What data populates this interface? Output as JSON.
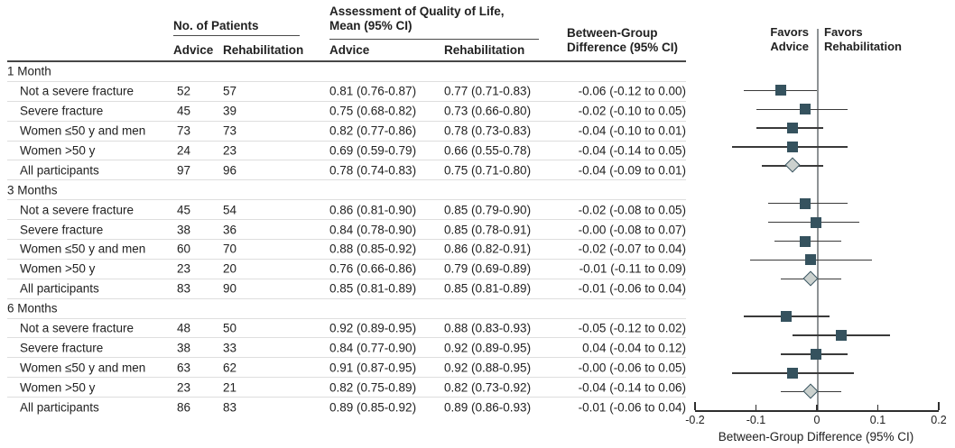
{
  "header": {
    "no_of_patients": "No. of Patients",
    "qol_line1": "Assessment of Quality of Life,",
    "qol_line2": "Mean (95% CI)",
    "advice": "Advice",
    "rehabilitation": "Rehabilitation",
    "bg_line1": "Between-Group",
    "bg_line2": "Difference (95% CI)"
  },
  "forest_header": {
    "favors_advice_line1": "Favors",
    "favors_advice_line2": "Advice",
    "favors_rehab_line1": "Favors",
    "favors_rehab_line2": "Rehabilitation"
  },
  "axis": {
    "ticks": [
      "-0.2",
      "-0.1",
      "0",
      "0.1",
      "0.2"
    ],
    "tick_values": [
      -0.2,
      -0.1,
      0,
      0.1,
      0.2
    ],
    "label": "Between-Group Difference (95% CI)",
    "min": -0.2,
    "max": 0.2
  },
  "colors": {
    "square": "#35525e",
    "diamond_fill": "#cbd1ce",
    "diamond_border": "#37535f",
    "zero_line": "#8e9294",
    "ci_line": "#3a3a3a"
  },
  "chart_data": {
    "type": "scatter",
    "subtype": "forest-plot",
    "xlabel": "Between-Group Difference (95% CI)",
    "xlim": [
      -0.2,
      0.2
    ],
    "legend": {
      "left_of_zero": "Favors Advice",
      "right_of_zero": "Favors Rehabilitation"
    },
    "groups": [
      {
        "label": "1 Month",
        "rows": [
          {
            "label": "Not a severe fracture",
            "n_advice": "52",
            "n_rehab": "57",
            "qol_advice": "0.81 (0.76-0.87)",
            "qol_rehab": "0.77 (0.71-0.83)",
            "diff_text": "-0.06 (-0.12 to 0.00)",
            "est": -0.06,
            "lo": -0.12,
            "hi": 0.0,
            "marker": "square"
          },
          {
            "label": "Severe fracture",
            "n_advice": "45",
            "n_rehab": "39",
            "qol_advice": "0.75 (0.68-0.82)",
            "qol_rehab": "0.73 (0.66-0.80)",
            "diff_text": "-0.02 (-0.10 to 0.05)",
            "est": -0.02,
            "lo": -0.1,
            "hi": 0.05,
            "marker": "square"
          },
          {
            "label": "Women ≤50 y and men",
            "n_advice": "73",
            "n_rehab": "73",
            "qol_advice": "0.82 (0.77-0.86)",
            "qol_rehab": "0.78 (0.73-0.83)",
            "diff_text": "-0.04 (-0.10 to 0.01)",
            "est": -0.04,
            "lo": -0.1,
            "hi": 0.01,
            "marker": "square"
          },
          {
            "label": "Women >50 y",
            "n_advice": "24",
            "n_rehab": "23",
            "qol_advice": "0.69 (0.59-0.79)",
            "qol_rehab": "0.66 (0.55-0.78)",
            "diff_text": "-0.04 (-0.14 to 0.05)",
            "est": -0.04,
            "lo": -0.14,
            "hi": 0.05,
            "marker": "square"
          },
          {
            "label": "All participants",
            "n_advice": "97",
            "n_rehab": "96",
            "qol_advice": "0.78 (0.74-0.83)",
            "qol_rehab": "0.75 (0.71-0.80)",
            "diff_text": "-0.04 (-0.09 to 0.01)",
            "est": -0.04,
            "lo": -0.09,
            "hi": 0.01,
            "marker": "diamond"
          }
        ]
      },
      {
        "label": "3 Months",
        "rows": [
          {
            "label": "Not a severe fracture",
            "n_advice": "45",
            "n_rehab": "54",
            "qol_advice": "0.86 (0.81-0.90)",
            "qol_rehab": "0.85 (0.79-0.90)",
            "diff_text": "-0.02 (-0.08 to 0.05)",
            "est": -0.02,
            "lo": -0.08,
            "hi": 0.05,
            "marker": "square"
          },
          {
            "label": "Severe fracture",
            "n_advice": "38",
            "n_rehab": "36",
            "qol_advice": "0.84 (0.78-0.90)",
            "qol_rehab": "0.85 (0.78-0.91)",
            "diff_text": "-0.00 (-0.08 to 0.07)",
            "est": -0.002,
            "lo": -0.08,
            "hi": 0.07,
            "marker": "square"
          },
          {
            "label": "Women ≤50 y and men",
            "n_advice": "60",
            "n_rehab": "70",
            "qol_advice": "0.88 (0.85-0.92)",
            "qol_rehab": "0.86 (0.82-0.91)",
            "diff_text": "-0.02 (-0.07 to 0.04)",
            "est": -0.02,
            "lo": -0.07,
            "hi": 0.04,
            "marker": "square"
          },
          {
            "label": "Women >50 y",
            "n_advice": "23",
            "n_rehab": "20",
            "qol_advice": "0.76 (0.66-0.86)",
            "qol_rehab": "0.79 (0.69-0.89)",
            "diff_text": "-0.01 (-0.11 to 0.09)",
            "est": -0.01,
            "lo": -0.11,
            "hi": 0.09,
            "marker": "square"
          },
          {
            "label": "All participants",
            "n_advice": "83",
            "n_rehab": "90",
            "qol_advice": "0.85 (0.81-0.89)",
            "qol_rehab": "0.85 (0.81-0.89)",
            "diff_text": "-0.01 (-0.06 to 0.04)",
            "est": -0.01,
            "lo": -0.06,
            "hi": 0.04,
            "marker": "diamond"
          }
        ]
      },
      {
        "label": "6 Months",
        "rows": [
          {
            "label": "Not a severe fracture",
            "n_advice": "48",
            "n_rehab": "50",
            "qol_advice": "0.92 (0.89-0.95)",
            "qol_rehab": "0.88 (0.83-0.93)",
            "diff_text": "-0.05 (-0.12 to 0.02)",
            "est": -0.05,
            "lo": -0.12,
            "hi": 0.02,
            "marker": "square"
          },
          {
            "label": "Severe fracture",
            "n_advice": "38",
            "n_rehab": "33",
            "qol_advice": "0.84 (0.77-0.90)",
            "qol_rehab": "0.92 (0.89-0.95)",
            "diff_text": "0.04 (-0.04 to 0.12)",
            "est": 0.04,
            "lo": -0.04,
            "hi": 0.12,
            "marker": "square"
          },
          {
            "label": "Women ≤50 y and men",
            "n_advice": "63",
            "n_rehab": "62",
            "qol_advice": "0.91 (0.87-0.95)",
            "qol_rehab": "0.92 (0.88-0.95)",
            "diff_text": "-0.00 (-0.06 to 0.05)",
            "est": -0.002,
            "lo": -0.06,
            "hi": 0.05,
            "marker": "square"
          },
          {
            "label": "Women >50 y",
            "n_advice": "23",
            "n_rehab": "21",
            "qol_advice": "0.82 (0.75-0.89)",
            "qol_rehab": "0.82 (0.73-0.92)",
            "diff_text": "-0.04 (-0.14 to 0.06)",
            "est": -0.04,
            "lo": -0.14,
            "hi": 0.06,
            "marker": "square"
          },
          {
            "label": "All participants",
            "n_advice": "86",
            "n_rehab": "83",
            "qol_advice": "0.89 (0.85-0.92)",
            "qol_rehab": "0.89 (0.86-0.93)",
            "diff_text": "-0.01 (-0.06 to 0.04)",
            "est": -0.01,
            "lo": -0.06,
            "hi": 0.04,
            "marker": "diamond"
          }
        ]
      }
    ]
  }
}
